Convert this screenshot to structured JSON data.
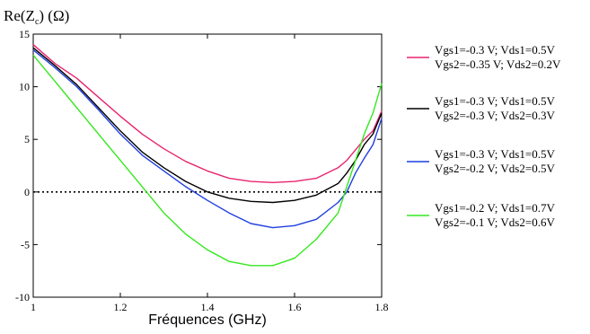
{
  "chart_data": {
    "type": "line",
    "title": "Re(Z",
    "title_sub": "c",
    "title_suffix": ") (Ω)",
    "xlabel": "Fréquences (GHz)",
    "ylabel": "",
    "xlim": [
      1,
      1.8
    ],
    "ylim": [
      -10,
      15
    ],
    "x_ticks": [
      1,
      1.2,
      1.4,
      1.6,
      1.8
    ],
    "x_tick_labels": [
      "1",
      "1.2",
      "1.4",
      "1.6",
      "1.8"
    ],
    "y_ticks": [
      -10,
      -5,
      0,
      5,
      10,
      15
    ],
    "y_tick_labels": [
      "-10",
      "-5",
      "0",
      "5",
      "10",
      "15"
    ],
    "grid": false,
    "legend_position": "right",
    "zero_line": "dotted",
    "series": [
      {
        "name_line1": "Vgs1=-0.3 V; Vds1=0.5V",
        "name_line2": "Vgs2=-0.35 V; Vds2=0.2V",
        "color": "#e8246e",
        "x": [
          1.0,
          1.05,
          1.1,
          1.15,
          1.2,
          1.25,
          1.3,
          1.35,
          1.4,
          1.45,
          1.5,
          1.55,
          1.6,
          1.65,
          1.7,
          1.72,
          1.74,
          1.76,
          1.78,
          1.8
        ],
        "y": [
          14.0,
          12.2,
          10.8,
          9.0,
          7.2,
          5.5,
          4.1,
          2.9,
          2.0,
          1.3,
          1.0,
          0.9,
          1.0,
          1.3,
          2.3,
          3.0,
          4.0,
          5.0,
          5.8,
          7.7
        ]
      },
      {
        "name_line1": "Vgs1=-0.3 V; Vds1=0.5V",
        "name_line2": "Vgs2=-0.3 V; Vds2=0.3V",
        "color": "#000000",
        "x": [
          1.0,
          1.05,
          1.1,
          1.15,
          1.2,
          1.25,
          1.3,
          1.35,
          1.4,
          1.45,
          1.5,
          1.55,
          1.6,
          1.65,
          1.7,
          1.72,
          1.74,
          1.76,
          1.78,
          1.8
        ],
        "y": [
          13.7,
          12.0,
          10.2,
          8.0,
          5.8,
          3.8,
          2.3,
          1.0,
          0.0,
          -0.6,
          -0.9,
          -1.0,
          -0.8,
          -0.3,
          0.8,
          1.8,
          3.0,
          4.5,
          5.5,
          7.5
        ]
      },
      {
        "name_line1": "Vgs1=-0.3 V; Vds1=0.5V",
        "name_line2": "Vgs2=-0.2 V; Vds2=0.5V",
        "color": "#1f3fe0",
        "x": [
          1.0,
          1.05,
          1.1,
          1.15,
          1.2,
          1.25,
          1.3,
          1.35,
          1.4,
          1.45,
          1.5,
          1.55,
          1.6,
          1.65,
          1.7,
          1.72,
          1.74,
          1.76,
          1.78,
          1.8
        ],
        "y": [
          13.5,
          11.8,
          10.0,
          7.8,
          5.5,
          3.5,
          2.0,
          0.5,
          -0.8,
          -2.0,
          -3.0,
          -3.4,
          -3.2,
          -2.6,
          -1.0,
          0.0,
          1.8,
          3.2,
          4.5,
          7.0
        ]
      },
      {
        "name_line1": "Vgs1=-0.2 V; Vds1=0.7V",
        "name_line2": "Vgs2=-0.1 V; Vds2=0.6V",
        "color": "#35e81e",
        "x": [
          1.0,
          1.05,
          1.1,
          1.15,
          1.2,
          1.25,
          1.3,
          1.35,
          1.4,
          1.45,
          1.5,
          1.55,
          1.6,
          1.65,
          1.7,
          1.72,
          1.74,
          1.76,
          1.78,
          1.8
        ],
        "y": [
          13.0,
          10.5,
          8.0,
          5.5,
          3.0,
          0.5,
          -2.0,
          -4.0,
          -5.5,
          -6.6,
          -7.0,
          -7.0,
          -6.3,
          -4.5,
          -2.0,
          0.5,
          3.0,
          5.5,
          7.5,
          10.3
        ]
      }
    ]
  }
}
